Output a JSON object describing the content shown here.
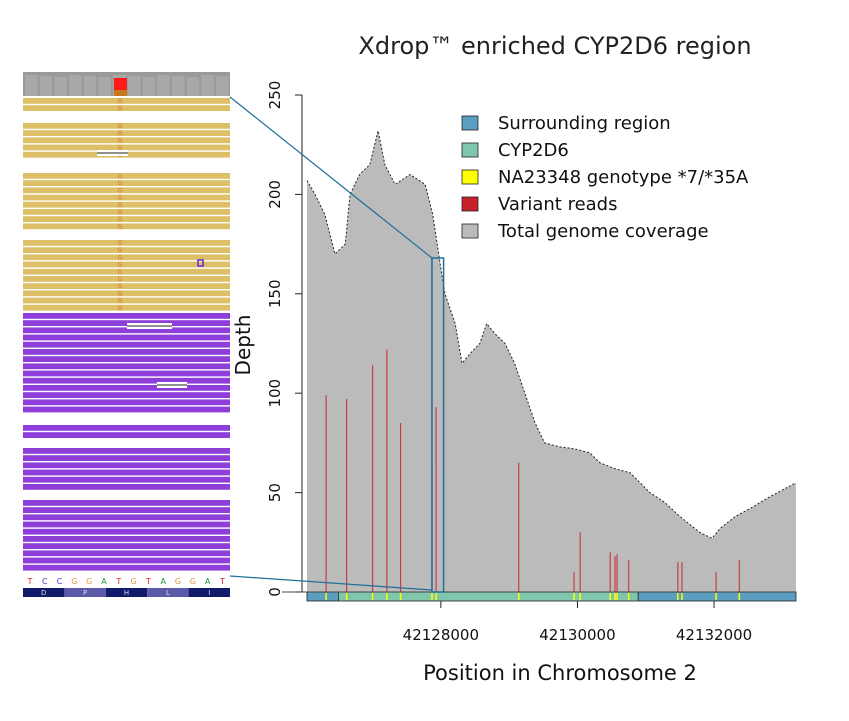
{
  "chart_data": {
    "type": "area",
    "title": "Xdrop™ enriched CYP2D6 region",
    "xlabel": "Position in Chromosome 2",
    "ylabel": "Depth",
    "xlim": [
      42126040,
      42133200
    ],
    "ylim": [
      0,
      250
    ],
    "yticks": [
      0,
      50,
      100,
      150,
      200,
      250
    ],
    "xticks": [
      42128000,
      42130000,
      42132000
    ],
    "grid": false,
    "legend_position": "top-right",
    "legend": [
      {
        "label": "Surrounding region",
        "color": "#5b9ec0"
      },
      {
        "label": "CYP2D6",
        "color": "#7fc6ad"
      },
      {
        "label": "NA23348 genotype *7/*35A",
        "color": "#ffff00"
      },
      {
        "label": "Variant reads",
        "color": "#c8202a"
      },
      {
        "label": "Total genome coverage",
        "color": "#bbbbbb"
      }
    ],
    "coverage": {
      "x": [
        42126040,
        42126157,
        42126300,
        42126450,
        42126600,
        42126670,
        42126810,
        42126960,
        42127080,
        42127180,
        42127330,
        42127550,
        42127770,
        42127880,
        42127990,
        42128060,
        42128210,
        42128310,
        42128430,
        42128570,
        42128670,
        42128790,
        42128940,
        42129080,
        42129230,
        42129380,
        42129520,
        42129740,
        42129960,
        42130180,
        42130330,
        42130550,
        42130770,
        42131060,
        42131280,
        42131500,
        42131790,
        42131970,
        42132090,
        42132310,
        42132530,
        42132820,
        42133040,
        42133200
      ],
      "y": [
        207,
        200,
        190,
        170,
        175,
        200,
        210,
        215,
        232,
        215,
        205,
        210,
        205,
        190,
        165,
        150,
        135,
        115,
        120,
        125,
        135,
        130,
        125,
        115,
        100,
        85,
        75,
        73,
        72,
        70,
        65,
        62,
        60,
        50,
        45,
        38,
        30,
        27,
        32,
        38,
        42,
        48,
        52,
        55
      ]
    },
    "regions": [
      {
        "name": "Surrounding region",
        "start": 42126040,
        "end": 42126500
      },
      {
        "name": "CYP2D6",
        "start": 42126500,
        "end": 42130890
      },
      {
        "name": "Surrounding region",
        "start": 42130890,
        "end": 42133200
      }
    ],
    "variants": {
      "x": [
        42126320,
        42126620,
        42127000,
        42127210,
        42127410,
        42127870,
        42127930,
        42129140,
        42129950,
        42130040,
        42130480,
        42130550,
        42130580,
        42130750,
        42131470,
        42131530,
        42132030,
        42132370
      ],
      "y": [
        99,
        97,
        114,
        122,
        85,
        63,
        93,
        65,
        10,
        30,
        20,
        18,
        19,
        16,
        15,
        15,
        10,
        16
      ]
    },
    "highlight": {
      "start": 42127870,
      "end": 42128040,
      "depth": 168
    }
  },
  "inset": {
    "sequence": [
      "T",
      "C",
      "C",
      "G",
      "G",
      "A",
      "T",
      "G",
      "T",
      "A",
      "G",
      "G",
      "A",
      "T"
    ],
    "amino_acids": [
      "D",
      "P",
      "H",
      "L",
      "I"
    ],
    "read_base": "G",
    "colors": {
      "ref_reads": "#dcbf66",
      "alt_reads": "#8f3fd9",
      "variant_cov": "#ff1a1a",
      "variant_cov2": "#c8781c"
    }
  }
}
